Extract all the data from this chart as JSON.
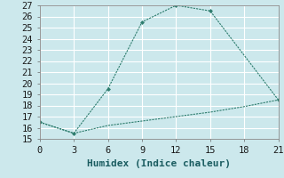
{
  "line1_x": [
    0,
    3,
    6,
    9,
    12,
    15,
    21
  ],
  "line1_y": [
    16.5,
    15.5,
    19.5,
    25.5,
    27.0,
    26.5,
    18.5
  ],
  "line2_x": [
    0,
    3,
    6,
    9,
    12,
    15,
    18,
    21
  ],
  "line2_y": [
    16.5,
    15.5,
    16.2,
    16.6,
    17.0,
    17.4,
    17.9,
    18.5
  ],
  "color": "#2e7d6e",
  "bg_color": "#cce8ec",
  "grid_color": "#b8d8dc",
  "xlabel": "Humidex (Indice chaleur)",
  "xlim": [
    0,
    21
  ],
  "ylim": [
    15,
    27
  ],
  "xticks": [
    0,
    3,
    6,
    9,
    12,
    15,
    18,
    21
  ],
  "yticks": [
    15,
    16,
    17,
    18,
    19,
    20,
    21,
    22,
    23,
    24,
    25,
    26,
    27
  ],
  "xlabel_fontsize": 8,
  "tick_fontsize": 7.5
}
